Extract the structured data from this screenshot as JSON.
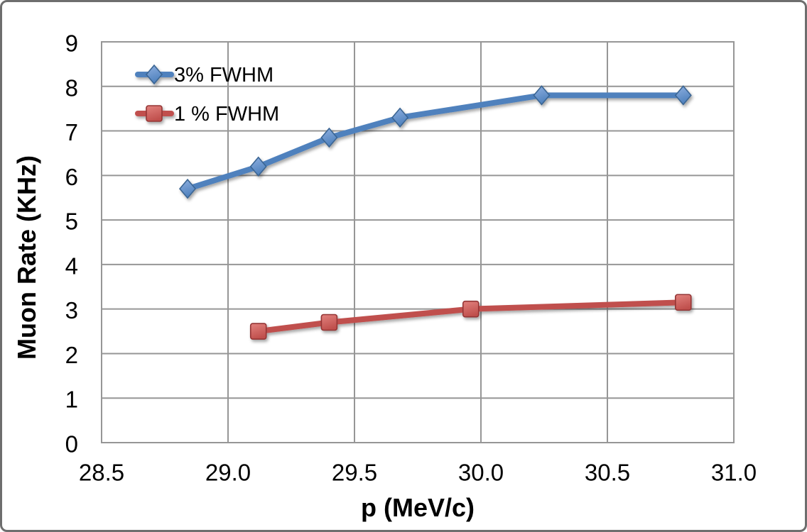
{
  "colors": {
    "background": "#FFFFFF",
    "outer_border": "#6E6E6E",
    "gridline": "#969696",
    "text": "#000000",
    "series_blue": "#4F81BD",
    "series_red": "#C0504D"
  },
  "chart_data": {
    "type": "line",
    "title": "",
    "xlabel": "p (MeV/c)",
    "ylabel": "Muon Rate (KHz)",
    "xlim": [
      28.5,
      31.0
    ],
    "ylim": [
      0,
      9
    ],
    "xticks": [
      "28.5",
      "29.0",
      "29.5",
      "30.0",
      "30.5",
      "31.0"
    ],
    "yticks": [
      "0",
      "1",
      "2",
      "3",
      "4",
      "5",
      "6",
      "7",
      "8",
      "9"
    ],
    "grid": true,
    "legend_position": "inside-top-left",
    "series": [
      {
        "name": "3% FWHM",
        "marker": "diamond",
        "line_color": "#4F81BD",
        "marker_fill_light": "#8FB0E0",
        "marker_fill_dark": "#4F81BD",
        "marker_stroke": "#3A6593",
        "x": [
          28.84,
          29.12,
          29.4,
          29.68,
          30.24,
          30.8
        ],
        "y": [
          5.7,
          6.2,
          6.85,
          7.3,
          7.8,
          7.8
        ]
      },
      {
        "name": "1 % FWHM",
        "marker": "square",
        "line_color": "#C0504D",
        "marker_fill_light": "#E2827E",
        "marker_fill_dark": "#C0504D",
        "marker_stroke": "#943634",
        "x": [
          29.12,
          29.4,
          29.96,
          30.8
        ],
        "y": [
          2.5,
          2.7,
          3.0,
          3.15
        ]
      }
    ]
  }
}
